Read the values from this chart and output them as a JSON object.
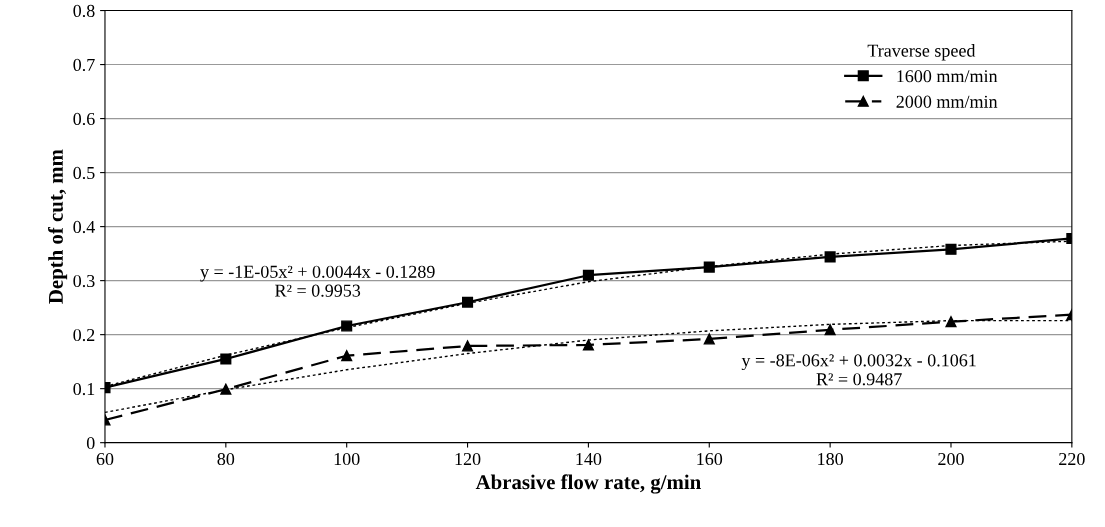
{
  "chart_data": {
    "type": "line",
    "xlabel": "Abrasive flow rate, g/min",
    "ylabel": "Depth of cut, mm",
    "legend_title": "Traverse speed",
    "x": [
      60,
      80,
      100,
      120,
      140,
      160,
      180,
      200,
      220
    ],
    "series": [
      {
        "name": "1600 mm/min",
        "color": "#000000",
        "marker": "square",
        "line_style": "solid",
        "values": [
          0.102,
          0.155,
          0.216,
          0.26,
          0.31,
          0.325,
          0.344,
          0.358,
          0.378
        ]
      },
      {
        "name": "2000 mm/min",
        "color": "#000000",
        "marker": "triangle",
        "line_style": "dashed",
        "values": [
          0.042,
          0.099,
          0.161,
          0.179,
          0.181,
          0.192,
          0.209,
          0.224,
          0.237
        ]
      },
      {
        "color": "#000000",
        "marker": "none",
        "line_style": "dotted",
        "values": [
          0.104,
          0.162,
          0.213,
          0.258,
          0.298,
          0.326,
          0.349,
          0.365,
          0.373
        ]
      },
      {
        "color": "#000000",
        "marker": "none",
        "line_style": "dotted",
        "values": [
          0.056,
          0.098,
          0.135,
          0.165,
          0.19,
          0.207,
          0.219,
          0.226,
          0.226
        ]
      }
    ],
    "annotations": [
      "y = -1E-05x² + 0.0044x - 0.1289\nR² = 0.9953",
      "y = -8E-06x² + 0.0032x - 0.1061\nR² = 0.9487"
    ],
    "xlim": [
      60,
      220
    ],
    "xticks": [
      60,
      80,
      100,
      120,
      140,
      160,
      180,
      200,
      220
    ],
    "ylim": [
      0,
      0.8
    ],
    "yticks": [
      0,
      0.1,
      0.2,
      0.3,
      0.4,
      0.5,
      0.6,
      0.7,
      0.8
    ],
    "grid": "y",
    "legend": "top right"
  }
}
